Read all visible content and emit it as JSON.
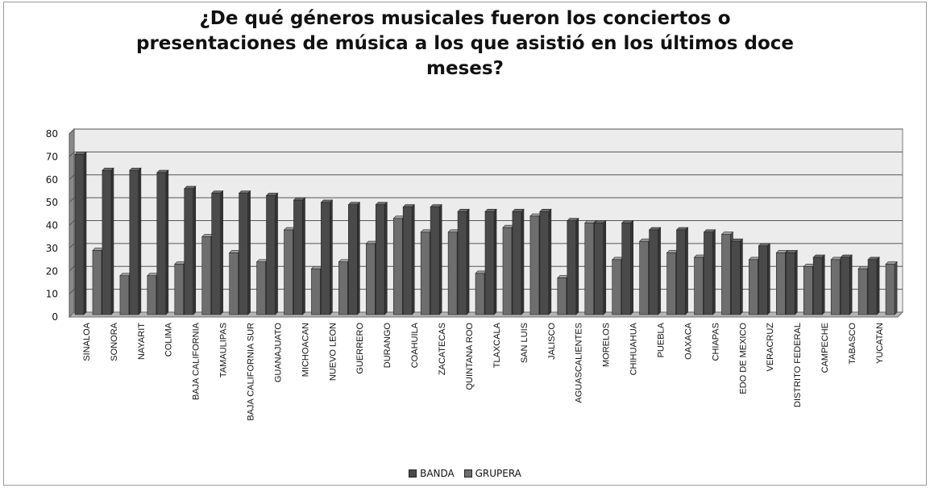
{
  "chart_data": {
    "type": "bar",
    "title": "¿De qué géneros musicales fueron los conciertos o\npresentaciones de música a los que asistió en los últimos doce\nmeses?",
    "categories": [
      "SINALOA",
      "SONORA",
      "NAYARIT",
      "COLIMA",
      "BAJA CALIFORNIA",
      "TAMAULIPAS",
      "BAJA CALIFORNIA SUR",
      "GUANAJUATO",
      "MICHOACAN",
      "NUEVO LEON",
      "GUERRERO",
      "DURANGO",
      "COAHUILA",
      "ZACATECAS",
      "QUINTANA ROO",
      "TLAXCALA",
      "SAN LUIS",
      "JALISCO",
      "AGUASCALIENTES",
      "MORELOS",
      "CHIHUAHUA",
      "PUEBLA",
      "OAXACA",
      "CHIAPAS",
      "EDO DE MEXICO",
      "VERACRUZ",
      "DISTRITO FEDERAL",
      "CAMPECHE",
      "TABASCO",
      "YUCATAN"
    ],
    "series": [
      {
        "name": "BANDA",
        "color": "#4a4a4a",
        "values": [
          70,
          63,
          63,
          62,
          55,
          53,
          53,
          52,
          50,
          49,
          48,
          48,
          47,
          47,
          45,
          45,
          45,
          45,
          41,
          40,
          40,
          37,
          37,
          36,
          32,
          30,
          27,
          25,
          25,
          24
        ]
      },
      {
        "name": "GRUPERA",
        "color": "#6e6e6e",
        "values": [
          28,
          17,
          17,
          22,
          34,
          27,
          23,
          37,
          20,
          23,
          31,
          42,
          36,
          36,
          18,
          38,
          43,
          16,
          40,
          24,
          32,
          27,
          25,
          35,
          24,
          27,
          21,
          24,
          20,
          22
        ]
      }
    ],
    "ylim": [
      0,
      80
    ],
    "yticks": [
      0,
      10,
      20,
      30,
      40,
      50,
      60,
      70,
      80
    ],
    "grid": true,
    "legend_position": "bottom"
  }
}
